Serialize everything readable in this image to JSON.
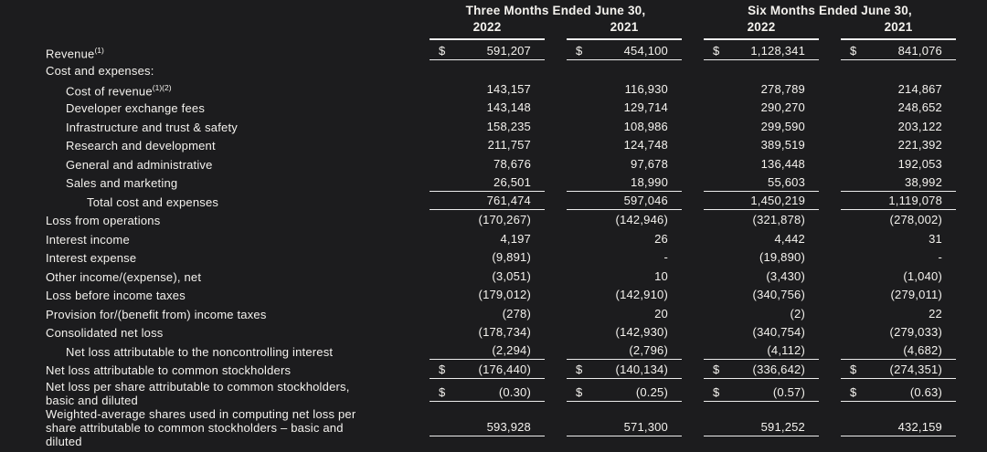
{
  "theme": {
    "background": "#1c1c1e",
    "text": "#f4f2ee",
    "rule_color": "#ededed"
  },
  "header": {
    "groups": [
      {
        "title": "Three Months Ended June 30,",
        "years": [
          "2022",
          "2021"
        ]
      },
      {
        "title": "Six Months Ended June 30,",
        "years": [
          "2022",
          "2021"
        ]
      }
    ]
  },
  "rows": [
    {
      "label": "Revenue",
      "sup": "(1)",
      "indent": 0,
      "dollar": true,
      "rule_below": true,
      "values": [
        "591,207",
        "454,100",
        "1,128,341",
        "841,076"
      ]
    },
    {
      "label": "Cost and expenses:",
      "indent": 0,
      "dollar": false,
      "rule_below": false,
      "values": [
        "",
        "",
        "",
        ""
      ]
    },
    {
      "label": "Cost of revenue",
      "sup": "(1)(2)",
      "indent": 1,
      "dollar": false,
      "rule_below": false,
      "values": [
        "143,157",
        "116,930",
        "278,789",
        "214,867"
      ]
    },
    {
      "label": "Developer exchange fees",
      "indent": 1,
      "dollar": false,
      "rule_below": false,
      "values": [
        "143,148",
        "129,714",
        "290,270",
        "248,652"
      ]
    },
    {
      "label": "Infrastructure and trust & safety",
      "indent": 1,
      "dollar": false,
      "rule_below": false,
      "values": [
        "158,235",
        "108,986",
        "299,590",
        "203,122"
      ]
    },
    {
      "label": "Research and development",
      "indent": 1,
      "dollar": false,
      "rule_below": false,
      "values": [
        "211,757",
        "124,748",
        "389,519",
        "221,392"
      ]
    },
    {
      "label": "General and administrative",
      "indent": 1,
      "dollar": false,
      "rule_below": false,
      "values": [
        "78,676",
        "97,678",
        "136,448",
        "192,053"
      ]
    },
    {
      "label": "Sales and marketing",
      "indent": 1,
      "dollar": false,
      "rule_below": true,
      "values": [
        "26,501",
        "18,990",
        "55,603",
        "38,992"
      ]
    },
    {
      "label": "Total cost and expenses",
      "indent": 2,
      "dollar": false,
      "rule_below": true,
      "values": [
        "761,474",
        "597,046",
        "1,450,219",
        "1,119,078"
      ]
    },
    {
      "label": "Loss from operations",
      "indent": 0,
      "dollar": false,
      "rule_below": false,
      "values": [
        "(170,267)",
        "(142,946)",
        "(321,878)",
        "(278,002)"
      ]
    },
    {
      "label": "Interest income",
      "indent": 0,
      "dollar": false,
      "rule_below": false,
      "values": [
        "4,197",
        "26",
        "4,442",
        "31"
      ]
    },
    {
      "label": "Interest expense",
      "indent": 0,
      "dollar": false,
      "rule_below": false,
      "values": [
        "(9,891)",
        "-",
        "(19,890)",
        "-"
      ]
    },
    {
      "label": "Other income/(expense), net",
      "indent": 0,
      "dollar": false,
      "rule_below": false,
      "values": [
        "(3,051)",
        "10",
        "(3,430)",
        "(1,040)"
      ]
    },
    {
      "label": "Loss before income taxes",
      "indent": 0,
      "dollar": false,
      "rule_below": false,
      "values": [
        "(179,012)",
        "(142,910)",
        "(340,756)",
        "(279,011)"
      ]
    },
    {
      "label": "Provision for/(benefit from) income taxes",
      "indent": 0,
      "dollar": false,
      "rule_below": false,
      "values": [
        "(278)",
        "20",
        "(2)",
        "22"
      ]
    },
    {
      "label": "Consolidated net loss",
      "indent": 0,
      "dollar": false,
      "rule_below": false,
      "values": [
        "(178,734)",
        "(142,930)",
        "(340,754)",
        "(279,033)"
      ]
    },
    {
      "label": "Net loss attributable to the noncontrolling interest",
      "indent": 1,
      "dollar": false,
      "rule_below": true,
      "values": [
        "(2,294)",
        "(2,796)",
        "(4,112)",
        "(4,682)"
      ]
    },
    {
      "label": "Net loss attributable to common stockholders",
      "indent": 0,
      "dollar": true,
      "rule_below": true,
      "values": [
        "(176,440)",
        "(140,134)",
        "(336,642)",
        "(274,351)"
      ]
    },
    {
      "label": "Net loss per share attributable to common stockholders, basic and diluted",
      "indent": 0,
      "dollar": true,
      "rule_below": true,
      "values": [
        "(0.30)",
        "(0.25)",
        "(0.57)",
        "(0.63)"
      ]
    },
    {
      "label": "Weighted-average shares used in computing net loss per share attributable to common stockholders – basic and diluted",
      "indent": 0,
      "dollar": false,
      "rule_below": true,
      "values": [
        "593,928",
        "571,300",
        "591,252",
        "432,159"
      ]
    }
  ]
}
